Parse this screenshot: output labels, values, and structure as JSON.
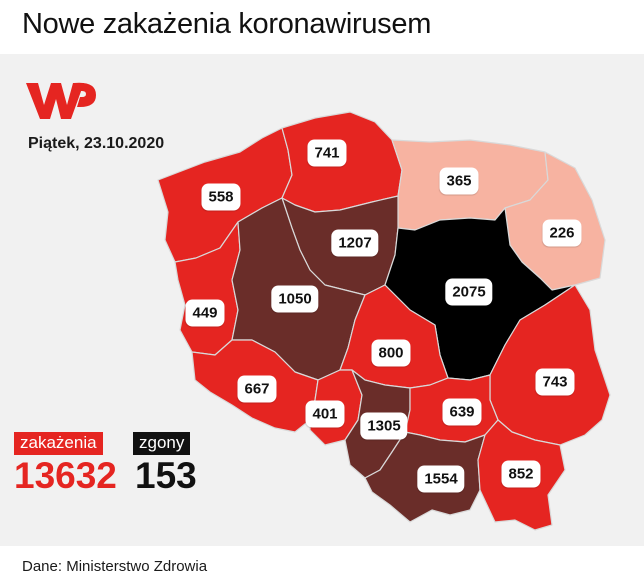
{
  "title": "Nowe zakażenia koronawirusem",
  "date": "Piątek, 23.10.2020",
  "logo": "wp-logo",
  "legend": {
    "cases_label": "zakażenia",
    "cases_value": "13632",
    "deaths_label": "zgony",
    "deaths_value": "153"
  },
  "source": "Dane: Ministerstwo Zdrowia",
  "colors": {
    "level_low": "#f7b3a1",
    "level_mid": "#e52521",
    "level_high": "#6a2d29",
    "level_max": "#000000",
    "background": "#f1f1f1"
  },
  "regions": {
    "zachodniopomorskie": {
      "value": "558",
      "level": "mid"
    },
    "pomorskie": {
      "value": "741",
      "level": "mid"
    },
    "warminsko_mazurskie": {
      "value": "365",
      "level": "low"
    },
    "podlaskie": {
      "value": "226",
      "level": "low"
    },
    "kujawsko_pomorskie": {
      "value": "1207",
      "level": "high"
    },
    "lubuskie": {
      "value": "449",
      "level": "mid"
    },
    "wielkopolskie": {
      "value": "1050",
      "level": "high"
    },
    "mazowieckie": {
      "value": "2075",
      "level": "max"
    },
    "lodzkie": {
      "value": "800",
      "level": "mid"
    },
    "lubelskie": {
      "value": "743",
      "level": "mid"
    },
    "dolnoslaskie": {
      "value": "667",
      "level": "mid"
    },
    "opolskie": {
      "value": "401",
      "level": "mid"
    },
    "slaskie": {
      "value": "1305",
      "level": "high"
    },
    "swietokrzyskie": {
      "value": "639",
      "level": "mid"
    },
    "malopolskie": {
      "value": "1554",
      "level": "high"
    },
    "podkarpackie": {
      "value": "852",
      "level": "mid"
    }
  }
}
